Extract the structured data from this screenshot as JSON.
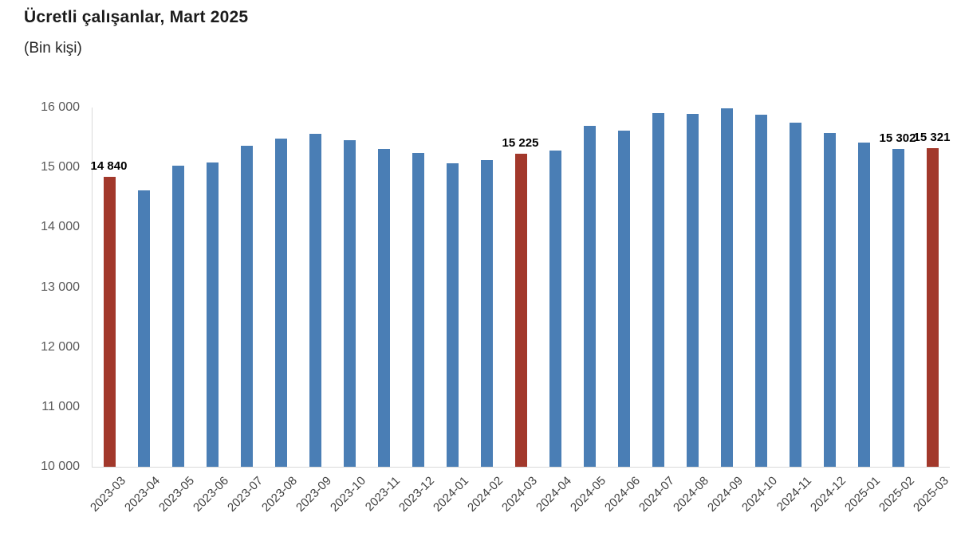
{
  "header": {
    "title": "Ücretli çalışanlar, Mart 2025",
    "subtitle": "(Bin kişi)"
  },
  "chart_data": {
    "type": "bar",
    "title": "Ücretli çalışanlar, Mart 2025",
    "subtitle": "(Bin kişi)",
    "xlabel": "",
    "ylabel": "",
    "ylim": [
      10000,
      16000
    ],
    "grid": false,
    "legend": "none",
    "categories": [
      "2023-03",
      "2023-04",
      "2023-05",
      "2023-06",
      "2023-07",
      "2023-08",
      "2023-09",
      "2023-10",
      "2023-11",
      "2023-12",
      "2024-01",
      "2024-02",
      "2024-03",
      "2024-04",
      "2024-05",
      "2024-06",
      "2024-07",
      "2024-08",
      "2024-09",
      "2024-10",
      "2024-11",
      "2024-12",
      "2025-01",
      "2025-02",
      "2025-03"
    ],
    "values": [
      14840,
      14615,
      15025,
      15085,
      15360,
      15485,
      15555,
      15455,
      15305,
      15245,
      15075,
      15125,
      15225,
      15280,
      15695,
      15620,
      15910,
      15900,
      15985,
      15880,
      15750,
      15580,
      15410,
      15302,
      15321
    ],
    "data_labels": [
      "14 840",
      "",
      "",
      "",
      "",
      "",
      "",
      "",
      "",
      "",
      "",
      "",
      "15 225",
      "",
      "",
      "",
      "",
      "",
      "",
      "",
      "",
      "",
      "",
      "15 302",
      "15 321"
    ],
    "highlight_indices": [
      0,
      12,
      24
    ],
    "yticks": [
      10000,
      11000,
      12000,
      13000,
      14000,
      15000,
      16000
    ],
    "ytick_labels": [
      "10 000",
      "11 000",
      "12 000",
      "13 000",
      "14 000",
      "15 000",
      "16 000"
    ],
    "colors": {
      "bar": "#4A7EB5",
      "highlight": "#A2382B",
      "axis_line": "#d9d9d9"
    }
  }
}
